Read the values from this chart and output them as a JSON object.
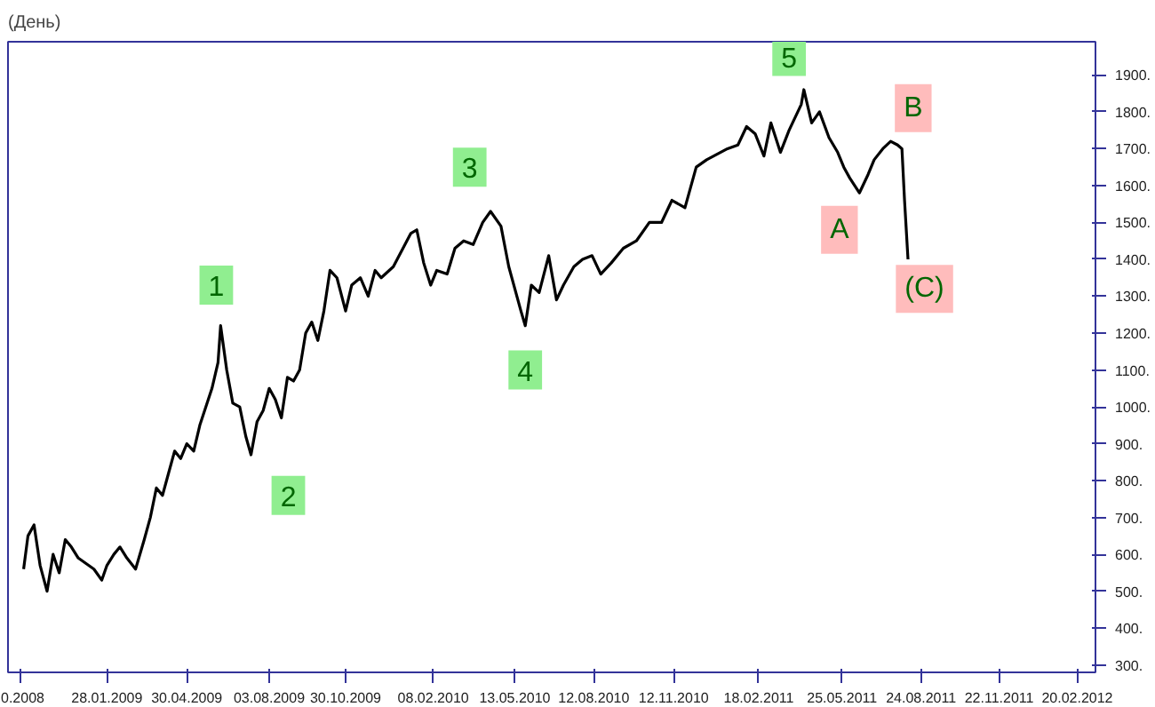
{
  "chart_data": {
    "type": "line",
    "title": "(День)",
    "x": [
      "2008-10-24",
      "2008-10-29",
      "2008-11-05",
      "2008-11-12",
      "2008-11-20",
      "2008-11-27",
      "2008-12-04",
      "2008-12-11",
      "2008-12-18",
      "2008-12-26",
      "2009-01-13",
      "2009-01-22",
      "2009-01-28",
      "2009-02-05",
      "2009-02-12",
      "2009-02-20",
      "2009-03-02",
      "2009-03-12",
      "2009-03-19",
      "2009-03-26",
      "2009-04-02",
      "2009-04-09",
      "2009-04-16",
      "2009-04-23",
      "2009-04-30",
      "2009-05-08",
      "2009-05-15",
      "2009-05-22",
      "2009-05-29",
      "2009-06-05",
      "2009-06-08",
      "2009-06-15",
      "2009-06-22",
      "2009-06-30",
      "2009-07-07",
      "2009-07-13",
      "2009-07-20",
      "2009-07-27",
      "2009-08-03",
      "2009-08-10",
      "2009-08-17",
      "2009-08-24",
      "2009-08-31",
      "2009-09-07",
      "2009-09-14",
      "2009-09-21",
      "2009-09-28",
      "2009-10-05",
      "2009-10-12",
      "2009-10-20",
      "2009-10-30",
      "2009-11-06",
      "2009-11-16",
      "2009-11-25",
      "2009-12-03",
      "2009-12-10",
      "2009-12-24",
      "2010-01-13",
      "2010-01-20",
      "2010-01-28",
      "2010-02-05",
      "2010-02-12",
      "2010-02-24",
      "2010-03-05",
      "2010-03-15",
      "2010-03-26",
      "2010-04-06",
      "2010-04-15",
      "2010-04-27",
      "2010-05-06",
      "2010-05-20",
      "2010-05-25",
      "2010-06-01",
      "2010-06-10",
      "2010-06-21",
      "2010-06-30",
      "2010-07-08",
      "2010-07-20",
      "2010-07-30",
      "2010-08-10",
      "2010-08-20",
      "2010-09-01",
      "2010-09-15",
      "2010-09-30",
      "2010-10-15",
      "2010-10-29",
      "2010-11-10",
      "2010-11-25",
      "2010-12-08",
      "2010-12-20",
      "2011-01-13",
      "2011-01-25",
      "2011-02-04",
      "2011-02-14",
      "2011-02-24",
      "2011-03-04",
      "2011-03-15",
      "2011-03-25",
      "2011-04-08",
      "2011-04-11",
      "2011-04-20",
      "2011-04-29",
      "2011-05-10",
      "2011-05-20",
      "2011-05-27",
      "2011-06-03",
      "2011-06-14",
      "2011-06-24",
      "2011-07-01",
      "2011-07-11",
      "2011-07-20",
      "2011-07-28",
      "2011-08-02",
      "2011-08-05",
      "2011-08-09"
    ],
    "series": [
      {
        "color": "#000000",
        "values": [
          560,
          650,
          680,
          570,
          500,
          600,
          550,
          640,
          620,
          590,
          560,
          530,
          570,
          600,
          620,
          590,
          560,
          640,
          700,
          780,
          760,
          820,
          880,
          860,
          900,
          880,
          950,
          1000,
          1050,
          1120,
          1220,
          1100,
          1010,
          1000,
          920,
          870,
          960,
          990,
          1050,
          1020,
          970,
          1080,
          1070,
          1100,
          1200,
          1230,
          1180,
          1260,
          1370,
          1350,
          1260,
          1330,
          1350,
          1300,
          1370,
          1350,
          1380,
          1470,
          1480,
          1390,
          1330,
          1370,
          1360,
          1430,
          1450,
          1440,
          1500,
          1530,
          1490,
          1380,
          1260,
          1220,
          1330,
          1310,
          1410,
          1290,
          1330,
          1380,
          1400,
          1410,
          1360,
          1390,
          1430,
          1450,
          1500,
          1500,
          1560,
          1540,
          1650,
          1670,
          1700,
          1710,
          1760,
          1740,
          1680,
          1770,
          1690,
          1750,
          1820,
          1860,
          1770,
          1800,
          1730,
          1690,
          1650,
          1620,
          1580,
          1630,
          1670,
          1700,
          1720,
          1710,
          1700,
          1560,
          1400
        ]
      }
    ],
    "xlim": [
      "2008-10-06",
      "2012-03-12"
    ],
    "xticks": [
      {
        "value": "2008-10-20",
        "label": "0.2008"
      },
      {
        "value": "2009-01-28",
        "label": "28.01.2009"
      },
      {
        "value": "2009-04-30",
        "label": "30.04.2009"
      },
      {
        "value": "2009-08-03",
        "label": "03.08.2009"
      },
      {
        "value": "2009-10-30",
        "label": "30.10.2009"
      },
      {
        "value": "2010-02-08",
        "label": "08.02.2010"
      },
      {
        "value": "2010-05-13",
        "label": "13.05.2010"
      },
      {
        "value": "2010-08-12",
        "label": "12.08.2010"
      },
      {
        "value": "2010-11-12",
        "label": "12.11.2010"
      },
      {
        "value": "2011-02-18",
        "label": "18.02.2011"
      },
      {
        "value": "2011-05-25",
        "label": "25.05.2011"
      },
      {
        "value": "2011-08-24",
        "label": "24.08.2011"
      },
      {
        "value": "2011-11-22",
        "label": "22.11.2011"
      },
      {
        "value": "2012-02-20",
        "label": "20.02.2012"
      }
    ],
    "ylim": [
      280,
      1990
    ],
    "yticks": [
      {
        "value": 300,
        "label": "300."
      },
      {
        "value": 400,
        "label": "400."
      },
      {
        "value": 500,
        "label": "500."
      },
      {
        "value": 600,
        "label": "600."
      },
      {
        "value": 700,
        "label": "700."
      },
      {
        "value": 800,
        "label": "800."
      },
      {
        "value": 900,
        "label": "900."
      },
      {
        "value": 1000,
        "label": "1000."
      },
      {
        "value": 1100,
        "label": "1100."
      },
      {
        "value": 1200,
        "label": "1200."
      },
      {
        "value": 1300,
        "label": "1300."
      },
      {
        "value": 1400,
        "label": "1400."
      },
      {
        "value": 1500,
        "label": "1500."
      },
      {
        "value": 1600,
        "label": "1600."
      },
      {
        "value": 1700,
        "label": "1700."
      },
      {
        "value": 1800,
        "label": "1800."
      },
      {
        "value": 1900,
        "label": "1900."
      }
    ],
    "annotations": [
      {
        "text": "1",
        "x": "2009-06-03",
        "y": 1330
      },
      {
        "text": "2",
        "x": "2009-08-25",
        "y": 760
      },
      {
        "text": "3",
        "x": "2010-03-22",
        "y": 1650
      },
      {
        "text": "4",
        "x": "2010-05-25",
        "y": 1100
      },
      {
        "text": "5",
        "x": "2011-03-25",
        "y": 1950
      },
      {
        "text": "A",
        "x": "2011-05-22",
        "y": 1480
      },
      {
        "text": "B",
        "x": "2011-08-15",
        "y": 1810
      },
      {
        "text": "(C)",
        "x": "2011-08-28",
        "y": 1320
      }
    ],
    "grid": false,
    "marker": "none",
    "line_style": "solid"
  }
}
